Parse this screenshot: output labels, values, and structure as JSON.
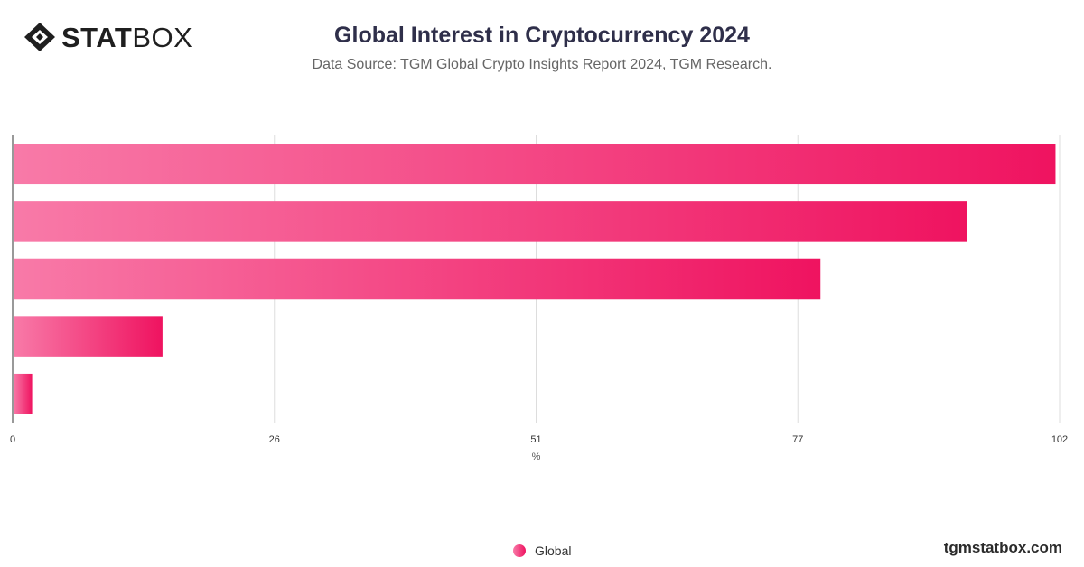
{
  "header": {
    "logo_bold": "STAT",
    "logo_light": "BOX",
    "title": "Global Interest in Cryptocurrency 2024",
    "subtitle": "Data Source: TGM Global Crypto Insights Report 2024, TGM Research."
  },
  "footer": {
    "legend_label": "Global",
    "site": "tgmstatbox.com"
  },
  "colors": {
    "bar_start": "#f87aa8",
    "bar_end": "#ef1360",
    "grid": "#dddddd",
    "axis": "#333333"
  },
  "chart_data": {
    "type": "bar",
    "orientation": "horizontal",
    "categories": [
      "",
      "",
      "",
      "",
      ""
    ],
    "series": [
      {
        "name": "Global",
        "values": [
          101.6,
          93.0,
          78.7,
          14.6,
          1.9
        ]
      }
    ],
    "xlabel": "%",
    "ylabel": "",
    "xlim": [
      0,
      102
    ],
    "x_ticks": [
      "0",
      "26",
      "51",
      "77",
      "102"
    ],
    "tick_values": [
      0,
      25.5,
      51,
      76.5,
      102
    ],
    "grid": true,
    "legend": "bottom-center"
  }
}
